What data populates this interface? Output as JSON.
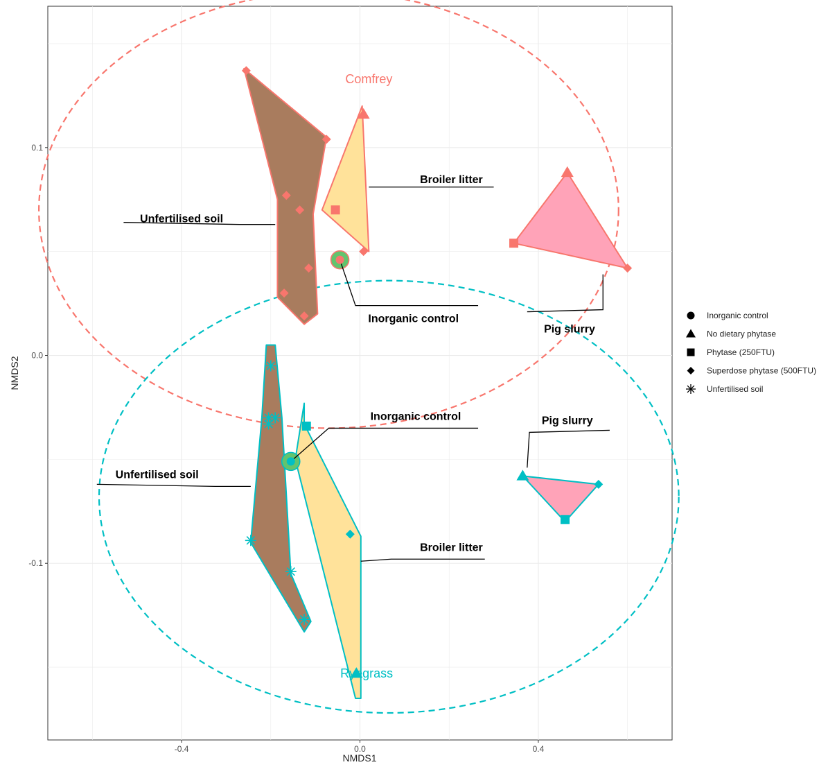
{
  "chart_data": {
    "type": "scatter",
    "xlabel": "NMDS1",
    "ylabel": "NMDS2",
    "xlim": [
      -0.7,
      0.7
    ],
    "ylim": [
      -0.185,
      0.168
    ],
    "x_ticks": [
      -0.4,
      0.0,
      0.4
    ],
    "x_tick_labels": [
      "-0.4",
      "0.0",
      "0.4"
    ],
    "y_ticks": [
      -0.1,
      0.0,
      0.1
    ],
    "y_tick_labels": [
      "-0.1",
      "0.0",
      "0.1"
    ],
    "grid": true,
    "legend_position": "right",
    "colors": {
      "Comfrey": "#F8766D",
      "Ryegrass": "#00BFC4"
    },
    "fills": {
      "Unfertilised soil": "#A97C5E",
      "Broiler litter": "#FFE29A",
      "Pig slurry": "#FFA3B8",
      "Inorganic control": "#62C46E"
    },
    "legend": [
      {
        "label": "Inorganic control",
        "shape": "circle"
      },
      {
        "label": "No dietary phytase",
        "shape": "triangle"
      },
      {
        "label": "Phytase (250FTU)",
        "shape": "square"
      },
      {
        "label": "Superdose phytase (500FTU)",
        "shape": "diamond"
      },
      {
        "label": "Unfertilised soil",
        "shape": "asterisk"
      }
    ],
    "groups": [
      {
        "name": "Comfrey",
        "color": "#F8766D",
        "ellipse": {
          "center": [
            -0.07,
            0.07
          ],
          "radii": [
            0.65,
            0.105
          ]
        },
        "label_pos": [
          0.02,
          0.131
        ]
      },
      {
        "name": "Ryegrass",
        "color": "#00BFC4",
        "ellipse": {
          "center": [
            0.065,
            -0.068
          ],
          "radii": [
            0.65,
            0.104
          ]
        },
        "label_pos": [
          0.015,
          -0.155
        ]
      }
    ],
    "series": [
      {
        "group": "Comfrey",
        "treatment": "Unfertilised soil",
        "shape": "diamond",
        "hull": [
          [
            -0.26,
            0.138
          ],
          [
            -0.075,
            0.105
          ],
          [
            -0.105,
            0.068
          ],
          [
            -0.095,
            0.02
          ],
          [
            -0.125,
            0.015
          ],
          [
            -0.185,
            0.028
          ],
          [
            -0.185,
            0.075
          ]
        ],
        "points": [
          [
            -0.255,
            0.137
          ],
          [
            -0.075,
            0.104
          ],
          [
            -0.165,
            0.077
          ],
          [
            -0.135,
            0.07
          ],
          [
            -0.115,
            0.042
          ],
          [
            -0.17,
            0.03
          ],
          [
            -0.125,
            0.019
          ]
        ]
      },
      {
        "group": "Comfrey",
        "treatment": "Broiler litter",
        "shape": "mixed",
        "hull": [
          [
            0.005,
            0.12
          ],
          [
            0.02,
            0.05
          ],
          [
            -0.085,
            0.07
          ]
        ],
        "points": [
          {
            "x": 0.008,
            "y": 0.116,
            "shape": "triangle"
          },
          {
            "x": -0.055,
            "y": 0.07,
            "shape": "square"
          },
          {
            "x": 0.008,
            "y": 0.05,
            "shape": "diamond"
          }
        ]
      },
      {
        "group": "Comfrey",
        "treatment": "Pig slurry",
        "shape": "mixed",
        "hull": [
          [
            0.465,
            0.088
          ],
          [
            0.6,
            0.042
          ],
          [
            0.345,
            0.054
          ]
        ],
        "points": [
          {
            "x": 0.465,
            "y": 0.088,
            "shape": "triangle"
          },
          {
            "x": 0.345,
            "y": 0.054,
            "shape": "square"
          },
          {
            "x": 0.6,
            "y": 0.042,
            "shape": "diamond"
          }
        ]
      },
      {
        "group": "Comfrey",
        "treatment": "Inorganic control",
        "shape": "circle",
        "points": [
          {
            "x": -0.045,
            "y": 0.046,
            "shape": "circle"
          }
        ]
      },
      {
        "group": "Ryegrass",
        "treatment": "Unfertilised soil",
        "shape": "asterisk",
        "hull": [
          [
            -0.21,
            0.005
          ],
          [
            -0.19,
            0.005
          ],
          [
            -0.175,
            -0.03
          ],
          [
            -0.155,
            -0.105
          ],
          [
            -0.11,
            -0.128
          ],
          [
            -0.125,
            -0.133
          ],
          [
            -0.245,
            -0.09
          ],
          [
            -0.22,
            -0.03
          ]
        ],
        "points": [
          [
            -0.2,
            -0.005
          ],
          [
            -0.205,
            -0.03
          ],
          [
            -0.19,
            -0.03
          ],
          [
            -0.205,
            -0.033
          ],
          [
            -0.245,
            -0.089
          ],
          [
            -0.155,
            -0.104
          ],
          [
            -0.125,
            -0.127
          ]
        ]
      },
      {
        "group": "Ryegrass",
        "treatment": "Broiler litter",
        "shape": "mixed",
        "hull": [
          [
            -0.125,
            -0.023
          ],
          [
            -0.125,
            -0.033
          ],
          [
            0.002,
            -0.087
          ],
          [
            0.002,
            -0.165
          ],
          [
            -0.01,
            -0.165
          ],
          [
            -0.145,
            -0.05
          ]
        ],
        "points": [
          {
            "x": -0.12,
            "y": -0.034,
            "shape": "square"
          },
          {
            "x": -0.022,
            "y": -0.086,
            "shape": "diamond"
          },
          {
            "x": -0.008,
            "y": -0.153,
            "shape": "triangle"
          }
        ]
      },
      {
        "group": "Ryegrass",
        "treatment": "Pig slurry",
        "shape": "mixed",
        "hull": [
          [
            0.365,
            -0.058
          ],
          [
            0.535,
            -0.062
          ],
          [
            0.46,
            -0.08
          ]
        ],
        "points": [
          {
            "x": 0.365,
            "y": -0.058,
            "shape": "triangle"
          },
          {
            "x": 0.46,
            "y": -0.079,
            "shape": "square"
          },
          {
            "x": 0.535,
            "y": -0.062,
            "shape": "diamond"
          }
        ]
      },
      {
        "group": "Ryegrass",
        "treatment": "Inorganic control",
        "shape": "circle",
        "points": [
          {
            "x": -0.155,
            "y": -0.051,
            "shape": "circle"
          }
        ]
      }
    ],
    "annotations": [
      {
        "text": "Unfertilised soil",
        "anchor": [
          -0.19,
          0.063
        ],
        "elbow": [
          -0.27,
          0.063
        ],
        "label_xy": [
          -0.4,
          0.064
        ],
        "line_end": [
          -0.53,
          0.064
        ]
      },
      {
        "text": "Broiler litter",
        "anchor": [
          0.02,
          0.081
        ],
        "elbow": [
          0.02,
          0.081
        ],
        "label_xy": [
          0.205,
          0.083
        ],
        "line_end": [
          0.3,
          0.081
        ]
      },
      {
        "text": "Inorganic control",
        "anchor": [
          -0.045,
          0.046
        ],
        "elbow": [
          -0.01,
          0.024
        ],
        "label_xy": [
          0.12,
          0.016
        ],
        "line_end": [
          0.265,
          0.024
        ]
      },
      {
        "text": "Pig slurry",
        "anchor": [
          0.545,
          0.039
        ],
        "elbow": [
          0.545,
          0.022
        ],
        "label_xy": [
          0.47,
          0.011
        ],
        "line_end": [
          0.375,
          0.021
        ]
      },
      {
        "text": "Inorganic control",
        "anchor": [
          -0.155,
          -0.051
        ],
        "elbow": [
          -0.07,
          -0.035
        ],
        "label_xy": [
          0.125,
          -0.031
        ],
        "line_end": [
          0.265,
          -0.035
        ]
      },
      {
        "text": "Pig slurry",
        "anchor": [
          0.375,
          -0.054
        ],
        "elbow": [
          0.38,
          -0.037
        ],
        "label_xy": [
          0.465,
          -0.033
        ],
        "line_end": [
          0.56,
          -0.036
        ]
      },
      {
        "text": "Unfertilised soil",
        "anchor": [
          -0.245,
          -0.063
        ],
        "elbow": [
          -0.325,
          -0.063
        ],
        "label_xy": [
          -0.455,
          -0.059
        ],
        "line_end": [
          -0.59,
          -0.062
        ]
      },
      {
        "text": "Broiler litter",
        "anchor": [
          0.002,
          -0.099
        ],
        "elbow": [
          0.07,
          -0.098
        ],
        "label_xy": [
          0.205,
          -0.094
        ],
        "line_end": [
          0.28,
          -0.098
        ]
      }
    ]
  }
}
